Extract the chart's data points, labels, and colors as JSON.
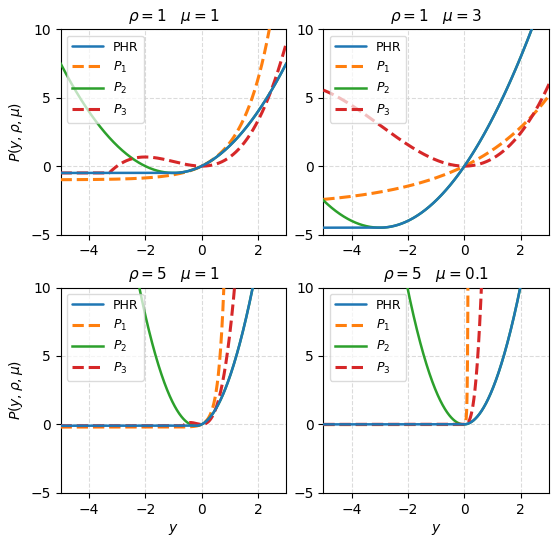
{
  "subplots": [
    {
      "rho": 1,
      "mu": 1
    },
    {
      "rho": 1,
      "mu": 3
    },
    {
      "rho": 5,
      "mu": 1
    },
    {
      "rho": 5,
      "mu": 0.1
    }
  ],
  "ylim": [
    -5,
    10
  ],
  "xlim": [
    -5,
    3
  ],
  "ylabel": "$P(y, \\rho, \\mu)$",
  "xlabel": "$y$",
  "yticks": [
    -5,
    0,
    5,
    10
  ],
  "xticks": [
    -4,
    -2,
    0,
    2
  ],
  "colors": {
    "PHR": "#1f77b4",
    "P1": "#ff7f0e",
    "P2": "#2ca02c",
    "P3": "#d62728"
  },
  "linestyles": {
    "PHR": "-",
    "P1": "--",
    "P2": "-",
    "P3": "--"
  },
  "linewidths": {
    "PHR": 1.8,
    "P1": 2.2,
    "P2": 1.8,
    "P3": 2.2
  }
}
